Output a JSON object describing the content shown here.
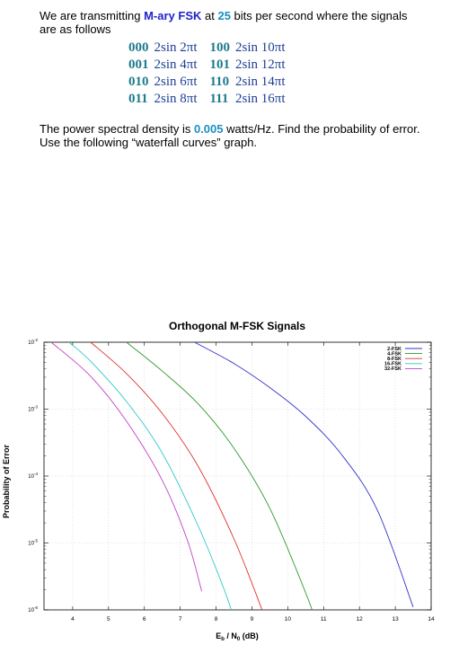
{
  "problem": {
    "line1_pre": "We are transmitting ",
    "line1_mary": "M-ary FSK",
    "line1_mid": " at ",
    "line1_rate": "25",
    "line1_post": " bits per second where the signals are as follows",
    "signals": [
      {
        "code": "000",
        "expr": "2sin 2πt"
      },
      {
        "code": "100",
        "expr": "2sin 10πt"
      },
      {
        "code": "001",
        "expr": "2sin 4πt"
      },
      {
        "code": "101",
        "expr": "2sin 12πt"
      },
      {
        "code": "010",
        "expr": "2sin 6πt"
      },
      {
        "code": "110",
        "expr": "2sin 14πt"
      },
      {
        "code": "011",
        "expr": "2sin 8πt"
      },
      {
        "code": "111",
        "expr": "2sin 16πt"
      }
    ],
    "line2_pre": "The power spectral density is ",
    "line2_psd": "0.005",
    "line2_post": " watts/Hz.  Find the probability of error.  Use the following “waterfall curves” graph."
  },
  "chart_data": {
    "type": "line",
    "title": "Orthogonal M-FSK Signals",
    "xlabel_main": "E",
    "xlabel_sub1": "b",
    "xlabel_mid": " / N",
    "xlabel_sub2": "0",
    "xlabel_post": "  (dB)",
    "ylabel": "Probability of Error",
    "xlim": [
      3.2,
      14
    ],
    "ylim_log10": [
      -6,
      -2
    ],
    "y_scale": "log",
    "x_ticks": [
      "4",
      "5",
      "6",
      "7",
      "8",
      "9",
      "10",
      "11",
      "12",
      "13",
      "14"
    ],
    "y_ticks": [
      {
        "base": "10",
        "exp": "-2",
        "log": -2
      },
      {
        "base": "10",
        "exp": "-3",
        "log": -3
      },
      {
        "base": "10",
        "exp": "-4",
        "log": -4
      },
      {
        "base": "10",
        "exp": "-5",
        "log": -5
      },
      {
        "base": "10",
        "exp": "-6",
        "log": -6
      }
    ],
    "grid": true,
    "legend_position": "top-right",
    "series": [
      {
        "name": "2-FSK",
        "color": "#3434c8",
        "x": [
          7.4,
          8.5,
          9.5,
          10.5,
          11.5,
          12.5,
          13.5
        ],
        "y": [
          0.01,
          0.0048,
          0.0021,
          0.00078,
          0.00021,
          3.1e-05,
          1.1e-06
        ]
      },
      {
        "name": "4-FSK",
        "color": "#2e9a2e",
        "x": [
          5.5,
          6.5,
          7.5,
          8.5,
          9.5,
          10.5,
          10.9
        ],
        "y": [
          0.01,
          0.0037,
          0.0012,
          0.00026,
          3.3e-05,
          1.8e-06,
          4.5e-07
        ]
      },
      {
        "name": "8-FSK",
        "color": "#e03030",
        "x": [
          4.5,
          5.5,
          6.5,
          7.5,
          8.5,
          9.3,
          9.5
        ],
        "y": [
          0.01,
          0.0034,
          0.00086,
          0.00014,
          1.15e-05,
          9.5e-07,
          4.8e-07
        ]
      },
      {
        "name": "16-FSK",
        "color": "#2ec8c8",
        "x": [
          3.9,
          4.5,
          5.5,
          6.5,
          7.5,
          8.2,
          8.5
        ],
        "y": [
          0.01,
          0.0052,
          0.0013,
          0.00022,
          1.8e-05,
          2.2e-06,
          7.5e-07
        ]
      },
      {
        "name": "32-FSK",
        "color": "#c040c8",
        "x": [
          3.4,
          4.5,
          5.5,
          6.5,
          7.2,
          7.6
        ],
        "y": [
          0.01,
          0.0031,
          0.00066,
          8.6e-05,
          1.1e-05,
          1.9e-06
        ]
      }
    ]
  }
}
